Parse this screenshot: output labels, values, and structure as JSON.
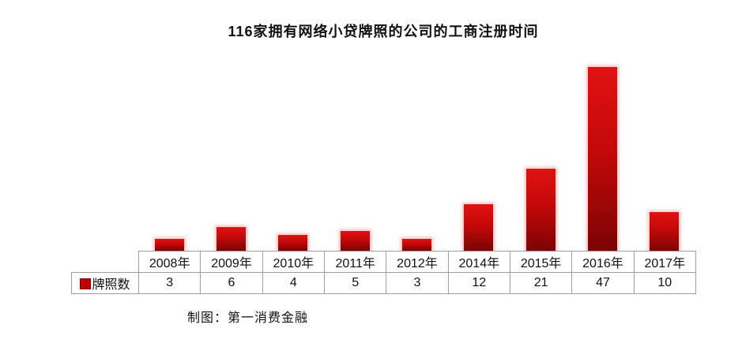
{
  "title": "116家拥有网络小贷牌照的公司的工商注册时间",
  "caption": "制图：第一消费金融",
  "legend": {
    "label": "牌照数",
    "marker_icon": "legend-square-icon",
    "marker_color": "#c00000",
    "marker_border_color": "#7f0000"
  },
  "colors": {
    "bar_top": "#e01212",
    "bar_bottom": "#7c0404",
    "bar_glow": "rgba(255,150,150,0.65)",
    "table_border": "#9e9e9e",
    "text": "#111111",
    "background": "#ffffff"
  },
  "chart_data": {
    "type": "bar",
    "title": "116家拥有网络小贷牌照的公司的工商注册时间",
    "categories": [
      "2008年",
      "2009年",
      "2010年",
      "2011年",
      "2012年",
      "2014年",
      "2015年",
      "2016年",
      "2017年"
    ],
    "series": [
      {
        "name": "牌照数",
        "values": [
          3,
          6,
          4,
          5,
          3,
          12,
          21,
          47,
          10
        ]
      }
    ],
    "xlabel": "",
    "ylabel": "",
    "ylim": [
      0,
      50
    ],
    "grid": false,
    "y_axis_visible": false,
    "legend_position": "data-table-left-cell",
    "data_table_under_axis": true
  }
}
